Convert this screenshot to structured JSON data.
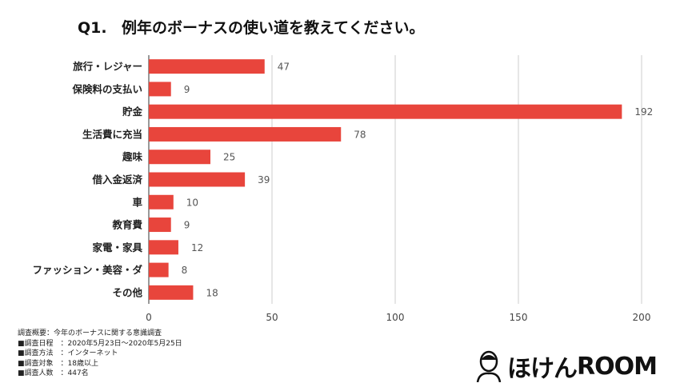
{
  "chart_data": {
    "type": "bar",
    "orientation": "horizontal",
    "title_prefix": "Q1.",
    "title": "例年のボーナスの使い道を教えてください。",
    "categories": [
      "旅行・レジャー",
      "保険料の支払い",
      "貯金",
      "生活費に充当",
      "趣味",
      "借入金返済",
      "車",
      "教育費",
      "家電・家具",
      "ファッション・美容・ダ",
      "その他"
    ],
    "values": [
      47,
      9,
      192,
      78,
      25,
      39,
      10,
      9,
      12,
      8,
      18
    ],
    "xlim": [
      0,
      200
    ],
    "xticks": [
      0,
      50,
      100,
      150,
      200
    ],
    "grid": true,
    "bar_color": "#e8453c"
  },
  "notes": [
    "調査概要：今年のボーナスに関する意識調査",
    "■調査日程　：2020年5月23日～2020年5月25日",
    "■調査方法　：インターネット",
    "■調査対象　：18歳以上",
    "■調査人数　：447名"
  ],
  "logo": {
    "text_kana": "ほけん",
    "text_latin": "ROOM"
  }
}
